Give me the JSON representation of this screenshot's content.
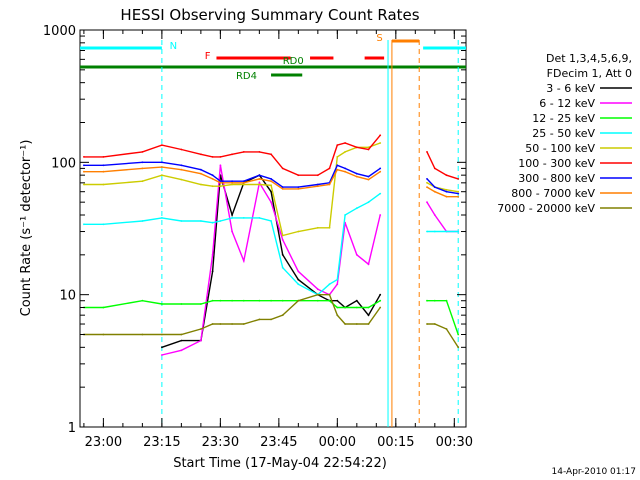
{
  "chart_data": {
    "type": "line",
    "title": "HESSI Observing Summary Count Rates",
    "xlabel": "Start Time (17-May-04 22:54:22)",
    "ylabel": "Count Rate (s⁻¹ detector⁻¹)",
    "y_scale": "log",
    "ylim": [
      1,
      1000
    ],
    "y_ticks": [
      "1",
      "10",
      "100",
      "1000"
    ],
    "x_ticks": [
      "23:00",
      "23:15",
      "23:30",
      "23:45",
      "00:00",
      "00:15",
      "00:30"
    ],
    "xlim": [
      "22:54",
      "00:33"
    ],
    "grid": false,
    "legend_position": "right",
    "legend_header": [
      "Det 1,3,4,5,6,9,",
      "FDecim 1, Att 0"
    ],
    "footer_timestamp": "14-Apr-2010 01:17",
    "state_bars": [
      {
        "label": "N",
        "color": "#00ffff",
        "segments": [
          [
            "22:54",
            "23:15"
          ],
          [
            "00:22",
            "00:33"
          ]
        ]
      },
      {
        "label": "S",
        "color": "#ff7f00",
        "segments": [
          [
            "00:14",
            "00:21"
          ]
        ]
      },
      {
        "label": "F",
        "color": "#ff0000",
        "segments": [
          [
            "23:29",
            "23:45"
          ],
          [
            "23:42",
            "23:48"
          ],
          [
            "23:53",
            "23:59"
          ],
          [
            "00:07",
            "00:12"
          ]
        ]
      },
      {
        "label": "RD0",
        "color": "#008000",
        "segments": [
          [
            "22:54",
            "00:33"
          ]
        ]
      },
      {
        "label": "RD4",
        "color": "#008000",
        "segments": [
          [
            "23:43",
            "23:51"
          ]
        ]
      }
    ],
    "event_lines": [
      {
        "time": "23:15",
        "color": "#00ffff",
        "style": "dashed"
      },
      {
        "time": "00:13",
        "color": "#00ffff",
        "style": "solid"
      },
      {
        "time": "00:14",
        "color": "#ff7f00",
        "style": "solid"
      },
      {
        "time": "00:21",
        "color": "#ff7f00",
        "style": "dashed"
      },
      {
        "time": "00:31",
        "color": "#00ffff",
        "style": "dashed"
      }
    ],
    "x": [
      "22:55",
      "23:00",
      "23:10",
      "23:15",
      "23:20",
      "23:25",
      "23:28",
      "23:30",
      "23:33",
      "23:36",
      "23:40",
      "23:43",
      "23:46",
      "23:50",
      "23:55",
      "23:58",
      "00:00",
      "00:02",
      "00:05",
      "00:08",
      "00:11",
      "00:13",
      "00:23",
      "00:25",
      "00:28",
      "00:31"
    ],
    "series": [
      {
        "name": "3 - 6 keV",
        "color": "#000000",
        "values": [
          null,
          null,
          null,
          4,
          4.5,
          4.5,
          15,
          80,
          40,
          70,
          80,
          60,
          20,
          13,
          10,
          9,
          9,
          8,
          9,
          7,
          10,
          null,
          null,
          null,
          null,
          null
        ]
      },
      {
        "name": "6 - 12 keV",
        "color": "#ff00ff",
        "values": [
          null,
          null,
          null,
          3.5,
          3.8,
          4.5,
          20,
          95,
          30,
          18,
          70,
          50,
          26,
          15,
          11,
          10,
          12,
          35,
          20,
          17,
          40,
          null,
          50,
          40,
          30,
          30
        ]
      },
      {
        "name": "12 - 25 keV",
        "color": "#00ff00",
        "values": [
          8,
          8,
          9,
          8.5,
          8.5,
          8.5,
          9,
          9,
          9,
          9,
          9,
          9,
          9,
          9,
          9,
          9,
          8,
          8,
          8,
          8,
          9,
          null,
          9,
          9,
          9,
          5
        ]
      },
      {
        "name": "25 - 50 keV",
        "color": "#00ffff",
        "values": [
          34,
          34,
          36,
          38,
          36,
          36,
          35,
          36,
          38,
          38,
          38,
          36,
          16,
          12,
          10,
          12,
          13,
          40,
          45,
          50,
          58,
          null,
          30,
          30,
          30,
          30
        ]
      },
      {
        "name": "50 - 100 keV",
        "color": "#cccc00",
        "values": [
          68,
          68,
          72,
          80,
          74,
          68,
          66,
          66,
          68,
          68,
          68,
          67,
          28,
          30,
          32,
          32,
          110,
          120,
          130,
          130,
          140,
          null,
          70,
          65,
          62,
          60
        ]
      },
      {
        "name": "100 - 300 keV",
        "color": "#ff0000",
        "values": [
          110,
          110,
          120,
          135,
          125,
          115,
          110,
          110,
          115,
          120,
          120,
          115,
          90,
          80,
          80,
          90,
          135,
          140,
          130,
          125,
          160,
          null,
          120,
          90,
          80,
          75
        ]
      },
      {
        "name": "300 - 800 keV",
        "color": "#0000ff",
        "values": [
          95,
          95,
          100,
          100,
          95,
          88,
          80,
          72,
          72,
          72,
          80,
          75,
          65,
          65,
          68,
          70,
          95,
          90,
          82,
          78,
          90,
          null,
          75,
          65,
          60,
          58
        ]
      },
      {
        "name": "800 - 7000 keV",
        "color": "#ff7f00",
        "values": [
          85,
          85,
          90,
          92,
          88,
          82,
          75,
          70,
          70,
          70,
          75,
          72,
          63,
          63,
          66,
          68,
          88,
          85,
          78,
          74,
          85,
          null,
          65,
          60,
          55,
          55
        ]
      },
      {
        "name": "7000 - 20000 keV",
        "color": "#808000",
        "values": [
          5,
          5,
          5,
          5,
          5,
          5.5,
          6,
          6,
          6,
          6,
          6.5,
          6.5,
          7,
          9,
          10,
          10,
          7,
          6,
          6,
          6,
          8,
          null,
          6,
          6,
          5.5,
          4
        ]
      }
    ]
  }
}
